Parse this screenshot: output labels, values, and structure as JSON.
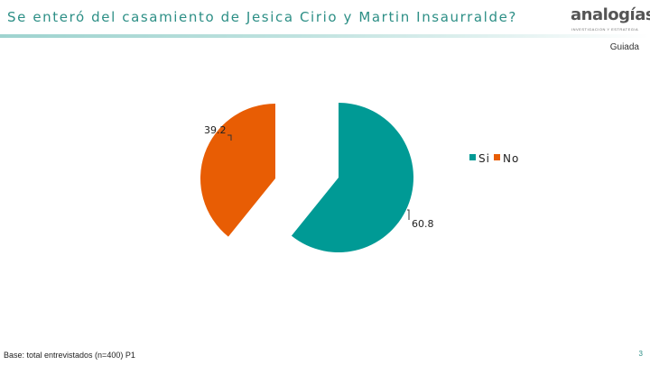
{
  "header": {
    "title": "Se enteró del casamiento de Jesica Cirio y Martin Insaurralde?",
    "logo_text": "analogías",
    "logo_tagline": "INVESTIGACION Y ESTRATEGIA",
    "tag": "Guiada"
  },
  "footer": {
    "base_note": "Base: total entrevistados (n=400) P1",
    "page_number": "3"
  },
  "colors": {
    "si": "#009a95",
    "no": "#e85d04",
    "title": "#2d8f86"
  },
  "chart_data": {
    "type": "pie",
    "title": "",
    "exploded": true,
    "labels": [
      "Si",
      "No"
    ],
    "values": [
      60.8,
      39.2
    ],
    "data_labels": [
      "60.8",
      "39.2"
    ],
    "legend_position": "right"
  }
}
